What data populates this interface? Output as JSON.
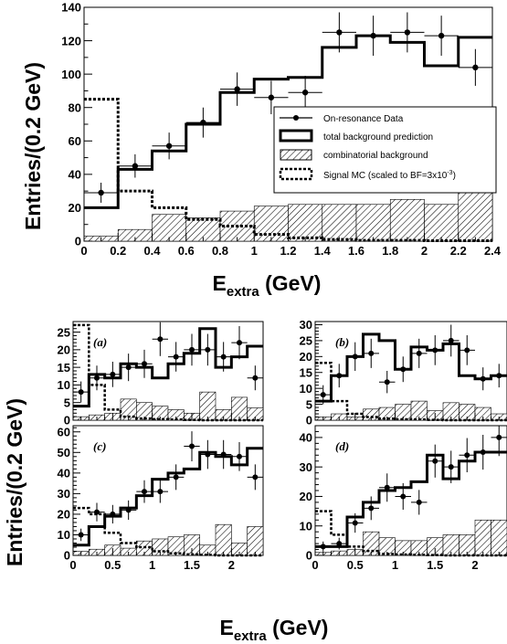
{
  "chart_data": [
    {
      "id": "main",
      "type": "histogram",
      "xlabel_main": "E",
      "xlabel_sub": "extra",
      "xlabel_unit": " (GeV)",
      "ylabel": "Entries/(0.2 GeV)",
      "xlim": [
        0,
        2.4
      ],
      "ylim": [
        0,
        140
      ],
      "xticks": [
        0,
        0.2,
        0.4,
        0.6,
        0.8,
        1,
        1.2,
        1.4,
        1.6,
        1.8,
        2,
        2.2,
        2.4
      ],
      "xtick_labels": [
        "0",
        "0.2",
        "0.4",
        "0.6",
        "0.8",
        "1",
        "1.2",
        "1.4",
        "1.6",
        "1.8",
        "2",
        "2.2",
        "2.4"
      ],
      "yticks": [
        0,
        20,
        40,
        60,
        80,
        100,
        120,
        140
      ],
      "ytick_labels": [
        "0",
        "20",
        "40",
        "60",
        "80",
        "100",
        "120",
        "140"
      ],
      "bin_edges": [
        0,
        0.2,
        0.4,
        0.6,
        0.8,
        1.0,
        1.2,
        1.4,
        1.6,
        1.8,
        2.0,
        2.2,
        2.4
      ],
      "data_points": [
        29,
        45,
        57,
        71,
        91,
        86,
        89,
        125,
        123,
        125,
        123,
        104
      ],
      "data_errors": [
        6,
        7,
        8,
        9,
        10,
        10,
        10,
        12,
        12,
        12,
        12,
        11
      ],
      "total_background": [
        20,
        43,
        54,
        70,
        89,
        97,
        98,
        116,
        123,
        119,
        105,
        122
      ],
      "combinatorial_background": [
        3,
        7,
        16,
        14,
        18,
        21,
        22,
        22,
        22,
        25,
        22,
        35
      ],
      "signal_mc": [
        85,
        30,
        20,
        13,
        9,
        4,
        2,
        1,
        0.5,
        0.5,
        0.3,
        0.3
      ],
      "legend": [
        {
          "label": "On-resonance Data",
          "style": "data"
        },
        {
          "label": "total background prediction",
          "style": "total"
        },
        {
          "label": "combinatorial background",
          "style": "hatch"
        },
        {
          "label": "Signal MC (scaled to BF=3x10",
          "superscript": "-3",
          "suffix": ")",
          "style": "signal"
        }
      ]
    },
    {
      "id": "a",
      "type": "histogram",
      "tag": "(a)",
      "xlim": [
        0,
        2.4
      ],
      "ylim": [
        0,
        28
      ],
      "yticks": [
        0,
        5,
        10,
        15,
        20,
        25
      ],
      "ytick_labels": [
        "0",
        "5",
        "10",
        "15",
        "20",
        "25"
      ],
      "bin_edges": [
        0,
        0.2,
        0.4,
        0.6,
        0.8,
        1.0,
        1.2,
        1.4,
        1.6,
        1.8,
        2.0,
        2.2,
        2.4
      ],
      "data_points": [
        8,
        12,
        13,
        15,
        16,
        23,
        18,
        20,
        20,
        18,
        22,
        12
      ],
      "data_errors": [
        3,
        3.5,
        3.6,
        3.9,
        4,
        4.8,
        4.2,
        4.5,
        4.5,
        4.2,
        4.7,
        3.5
      ],
      "total_background": [
        4,
        13,
        12,
        16,
        15,
        12,
        16,
        19,
        26,
        15,
        18,
        21
      ],
      "combinatorial_background": [
        1,
        1.5,
        2,
        6,
        5,
        4,
        3,
        2,
        8,
        3,
        6.5,
        3.5
      ],
      "signal_mc": [
        27,
        10,
        3,
        1,
        0.5,
        0.3,
        0.2,
        0.1,
        0,
        0,
        0,
        0
      ]
    },
    {
      "id": "b",
      "type": "histogram",
      "tag": "(b)",
      "xlim": [
        0,
        2.4
      ],
      "ylim": [
        0,
        31
      ],
      "yticks": [
        0,
        5,
        10,
        15,
        20,
        25,
        30
      ],
      "ytick_labels": [
        "0",
        "5",
        "10",
        "15",
        "20",
        "25",
        "30"
      ],
      "bin_edges": [
        0,
        0.2,
        0.4,
        0.6,
        0.8,
        1.0,
        1.2,
        1.4,
        1.6,
        1.8,
        2.0,
        2.2,
        2.4
      ],
      "data_points": [
        8,
        14,
        20,
        21,
        12,
        16,
        21,
        22,
        25,
        22,
        13,
        14
      ],
      "data_errors": [
        3,
        3.7,
        4.5,
        4.6,
        3.5,
        4,
        4.6,
        4.7,
        5,
        4.7,
        3.6,
        3.7
      ],
      "total_background": [
        6,
        14,
        20,
        27,
        25,
        16,
        23,
        22,
        24,
        14,
        13,
        14
      ],
      "combinatorial_background": [
        1,
        2,
        1,
        3.5,
        4,
        5,
        6,
        3,
        5.5,
        5,
        4,
        2
      ],
      "signal_mc": [
        18,
        6,
        2,
        1,
        0.5,
        0.3,
        0.2,
        0.1,
        0,
        0,
        0,
        0
      ]
    },
    {
      "id": "c",
      "type": "histogram",
      "tag": "(c)",
      "xlim": [
        0,
        2.4
      ],
      "ylim": [
        0,
        63
      ],
      "xticks": [
        0,
        0.5,
        1,
        1.5,
        2
      ],
      "xtick_labels": [
        "0",
        "0.5",
        "1",
        "1.5",
        "2"
      ],
      "yticks": [
        0,
        10,
        20,
        30,
        40,
        50,
        60
      ],
      "ytick_labels": [
        "0",
        "10",
        "20",
        "30",
        "40",
        "50",
        "60"
      ],
      "bin_edges": [
        0,
        0.2,
        0.4,
        0.6,
        0.8,
        1.0,
        1.2,
        1.4,
        1.6,
        1.8,
        2.0,
        2.2,
        2.4
      ],
      "data_points": [
        10,
        21,
        20,
        22,
        31,
        31,
        38,
        53,
        49,
        49,
        48,
        38
      ],
      "data_errors": [
        3,
        4.5,
        4.5,
        4.7,
        5.5,
        5.5,
        6.2,
        7.3,
        7,
        7,
        7,
        6.2
      ],
      "total_background": [
        5,
        14,
        19,
        23,
        29,
        37,
        40,
        42,
        50,
        48,
        44,
        52
      ],
      "combinatorial_background": [
        2,
        3,
        5,
        3.5,
        7,
        8,
        9,
        10,
        5,
        15,
        6,
        14
      ],
      "signal_mc": [
        23,
        20,
        11,
        6,
        4,
        2,
        1,
        0.5,
        0.3,
        0,
        0,
        0
      ]
    },
    {
      "id": "d",
      "type": "histogram",
      "tag": "(d)",
      "xlim": [
        0,
        2.4
      ],
      "ylim": [
        0,
        44
      ],
      "xticks": [
        0,
        0.5,
        1,
        1.5,
        2
      ],
      "xtick_labels": [
        "0",
        "0.5",
        "1",
        "1.5",
        "2"
      ],
      "yticks": [
        0,
        10,
        20,
        30,
        40
      ],
      "ytick_labels": [
        "0",
        "10",
        "20",
        "30",
        "40"
      ],
      "bin_edges": [
        0,
        0.2,
        0.4,
        0.6,
        0.8,
        1.0,
        1.2,
        1.4,
        1.6,
        1.8,
        2.0,
        2.2,
        2.4
      ],
      "data_points": [
        3,
        4,
        11,
        16,
        23,
        20,
        18,
        32,
        30,
        34,
        35,
        40
      ],
      "data_errors": [
        1.7,
        2,
        3.3,
        4,
        4.8,
        4.5,
        4.2,
        5.6,
        5.5,
        5.8,
        5.9,
        6.3
      ],
      "total_background": [
        3,
        3,
        13,
        18,
        22,
        23,
        25,
        34,
        26,
        32,
        35,
        35
      ],
      "combinatorial_background": [
        1,
        1.5,
        2,
        8,
        6,
        5,
        5,
        6,
        7,
        7,
        12,
        12
      ],
      "signal_mc": [
        15,
        7,
        3,
        1.5,
        0.5,
        0.3,
        0.2,
        0.1,
        0,
        0,
        0,
        0
      ]
    }
  ],
  "bottom": {
    "ylabel": "Entries/(0.2 GeV)",
    "xlabel_main": "E",
    "xlabel_sub": "extra",
    "xlabel_unit": " (GeV)"
  }
}
